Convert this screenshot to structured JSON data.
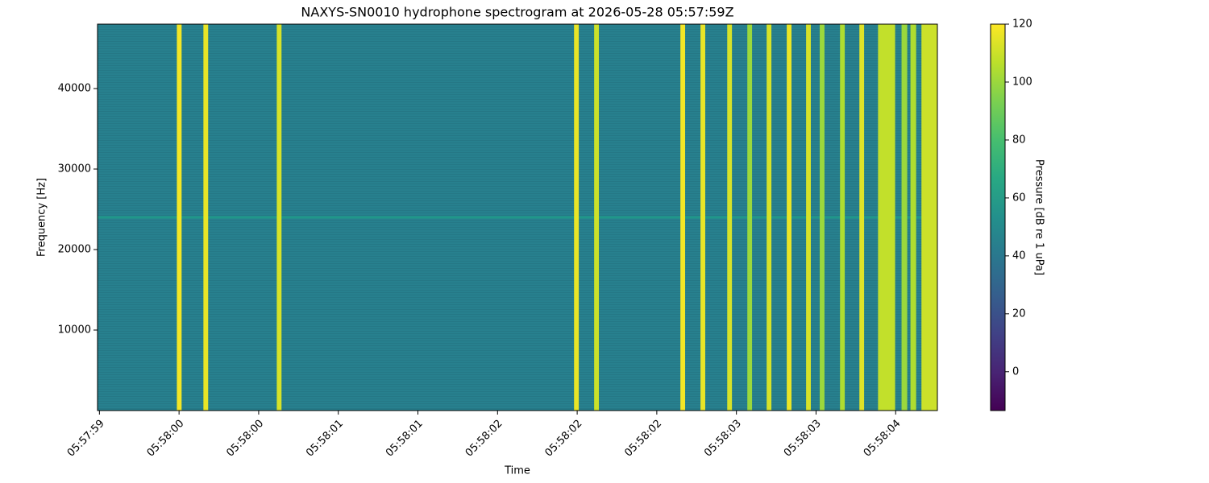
{
  "chart_data": {
    "type": "spectrogram",
    "title": "NAXYS-SN0010 hydrophone spectrogram at 2026-05-28 05:57:59Z",
    "xlabel": "Time",
    "ylabel": "Frequency [Hz]",
    "colorbar_label": "Pressure [dB re 1 uPa]",
    "colormap": "viridis",
    "xlim": [
      0.94,
      5.37
    ],
    "xticks": [
      {
        "value": 0.95,
        "label": "05:57:59"
      },
      {
        "value": 1.37,
        "label": "05:58:00"
      },
      {
        "value": 1.79,
        "label": "05:58:00"
      },
      {
        "value": 2.21,
        "label": "05:58:01"
      },
      {
        "value": 2.63,
        "label": "05:58:01"
      },
      {
        "value": 3.05,
        "label": "05:58:02"
      },
      {
        "value": 3.47,
        "label": "05:58:02"
      },
      {
        "value": 3.89,
        "label": "05:58:02"
      },
      {
        "value": 4.31,
        "label": "05:58:03"
      },
      {
        "value": 4.73,
        "label": "05:58:03"
      },
      {
        "value": 5.15,
        "label": "05:58:04"
      }
    ],
    "ylim": [
      0,
      48000
    ],
    "yticks": [
      10000,
      20000,
      30000,
      40000
    ],
    "clim": [
      -13.4,
      120
    ],
    "cticks": [
      0,
      20,
      40,
      60,
      80,
      100,
      120
    ],
    "background_db": 45,
    "tone": {
      "frequency": 24000,
      "level": 60
    },
    "clicks": {
      "times": [
        1.371,
        1.511,
        1.898,
        3.466,
        3.572,
        4.027,
        4.133,
        4.274,
        4.38,
        4.482,
        4.588,
        4.69,
        4.762,
        4.869,
        4.971,
        5.102,
        5.196,
        5.243,
        5.336
      ],
      "durations": [
        0.025,
        0.025,
        0.025,
        0.025,
        0.025,
        0.025,
        0.025,
        0.025,
        0.025,
        0.025,
        0.025,
        0.025,
        0.025,
        0.025,
        0.025,
        0.09,
        0.03,
        0.03,
        0.1
      ],
      "levels": [
        118,
        116,
        112,
        116,
        110,
        118,
        116,
        112,
        100,
        112,
        116,
        112,
        100,
        104,
        114,
        108,
        100,
        104,
        110
      ]
    }
  }
}
